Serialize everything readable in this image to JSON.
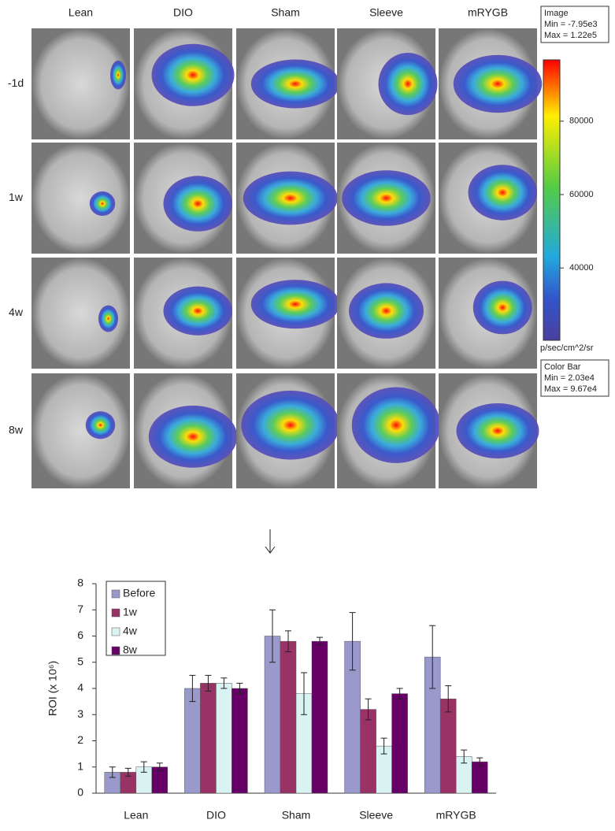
{
  "image_panel": {
    "columns": [
      "Lean",
      "DIO",
      "Sham",
      "Sleeve",
      "mRYGB"
    ],
    "rows": [
      "-1d",
      "1w",
      "4w",
      "8w"
    ],
    "image_info": [
      "Image",
      "Min = -7.95e3",
      "Max = 1.22e5"
    ],
    "colorbar": {
      "range": [
        20300,
        96700
      ],
      "ticks": [
        40000,
        60000,
        80000
      ],
      "unit": "p/sec/cm^2/sr",
      "info": [
        "Color Bar",
        "Min = 2.03e4",
        "Max = 9.67e4"
      ]
    }
  },
  "chart_data": {
    "type": "bar",
    "ylabel": "ROI (x 10⁶)",
    "categories": [
      "Lean",
      "DIO",
      "Sham",
      "Sleeve",
      "mRYGB"
    ],
    "series": [
      {
        "name": "Before",
        "color": "#9999cc",
        "values": [
          0.8,
          4.0,
          6.0,
          5.8,
          5.2
        ],
        "errors": [
          0.2,
          0.5,
          1.0,
          1.1,
          1.2
        ]
      },
      {
        "name": "1w",
        "color": "#993366",
        "values": [
          0.8,
          4.2,
          5.8,
          3.2,
          3.6
        ],
        "errors": [
          0.15,
          0.3,
          0.4,
          0.4,
          0.5
        ]
      },
      {
        "name": "4w",
        "color": "#d9f2f2",
        "values": [
          1.0,
          4.2,
          3.8,
          1.8,
          1.4
        ],
        "errors": [
          0.2,
          0.2,
          0.8,
          0.3,
          0.25
        ]
      },
      {
        "name": "8w",
        "color": "#660066",
        "values": [
          1.0,
          4.0,
          5.8,
          3.8,
          1.2
        ],
        "errors": [
          0.15,
          0.2,
          0.15,
          0.2,
          0.15
        ]
      }
    ],
    "ylim": [
      0,
      8
    ],
    "yticks": [
      0,
      1,
      2,
      3,
      4,
      5,
      6,
      7,
      8
    ]
  }
}
